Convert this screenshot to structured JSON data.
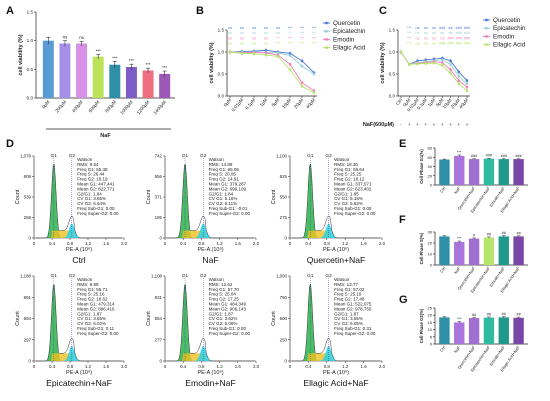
{
  "panel_labels": {
    "A": "A",
    "B": "B",
    "C": "C",
    "D": "D",
    "E": "E",
    "F": "F",
    "G": "G"
  },
  "colors": {
    "A_bars": [
      "#5b9bd5",
      "#a58fe8",
      "#d88fe6",
      "#bde35a",
      "#2e8fa6",
      "#7c5cc8",
      "#ef6f82",
      "#9b58b6"
    ],
    "quercetin": "#4a78d4",
    "epicatechin": "#9ad0d8",
    "emodin": "#f080b8",
    "ellagic": "#b5e56a",
    "E_bars": [
      "#2e8fa6",
      "#a974dc",
      "#a06fd0",
      "#2ebba0",
      "#1e9a8c",
      "#7b47a6"
    ],
    "F_bars": [
      "#2e8fa6",
      "#a974dc",
      "#a06fd0",
      "#b5e56a",
      "#1e9a8c",
      "#7b47a6"
    ],
    "G_bars": [
      "#2e8fa6",
      "#a974dc",
      "#a06fd0",
      "#2ebba0",
      "#1e9a8c",
      "#7b47a6"
    ],
    "fc_g1": "#2bb24c",
    "fc_s": "#f0c020",
    "fc_g2": "#2ad0e6"
  },
  "chart_data": [
    {
      "id": "A",
      "type": "bar",
      "title": "",
      "categories": [
        "0μM",
        "200μM",
        "400μM",
        "600μM",
        "800μM",
        "1000μM",
        "1200μM",
        "1400μM"
      ],
      "values": [
        1.0,
        0.95,
        0.95,
        0.72,
        0.58,
        0.54,
        0.48,
        0.42
      ],
      "errors": [
        0.06,
        0.05,
        0.04,
        0.04,
        0.06,
        0.05,
        0.04,
        0.05
      ],
      "significance": [
        "",
        "ns",
        "ns",
        "***",
        "***",
        "***",
        "***",
        "***"
      ],
      "ylabel": "cell viability (%)",
      "ylim": [
        0,
        1.5
      ],
      "yticks": [
        "0.0",
        "0.5",
        "1.0",
        "1.5"
      ],
      "group_label": "NaF"
    },
    {
      "id": "B",
      "type": "line",
      "x": [
        "0μM",
        "0.01μM",
        "0.1μM",
        "1μM",
        "5μM",
        "10μM",
        "20μM",
        "40μM"
      ],
      "ylabel": "cell viability (%)",
      "ylim": [
        0,
        1.5
      ],
      "yticks": [
        "0.0",
        "0.5",
        "1.0",
        "1.5"
      ],
      "series": [
        {
          "name": "Quercetin",
          "values": [
            1.0,
            1.01,
            1.02,
            1.04,
            1.0,
            0.97,
            0.8,
            0.53
          ]
        },
        {
          "name": "Epicatechin",
          "values": [
            1.0,
            0.99,
            1.0,
            0.99,
            0.98,
            0.92,
            0.68,
            0.5
          ]
        },
        {
          "name": "Emodin",
          "values": [
            1.0,
            0.98,
            0.99,
            0.98,
            0.93,
            0.72,
            0.3,
            0.12
          ]
        },
        {
          "name": "Ellagic Acid",
          "values": [
            1.0,
            0.97,
            0.96,
            0.93,
            0.9,
            0.6,
            0.22,
            0.08
          ]
        }
      ],
      "sig_rows": [
        [
          "ns",
          "ns",
          "ns",
          "ns",
          "ns",
          "***",
          "***",
          "***"
        ],
        [
          "ns",
          "ns",
          "ns",
          "ns",
          "ns",
          "**",
          "***",
          "***"
        ],
        [
          "ns",
          "ns",
          "ns",
          "ns",
          "**",
          "***",
          "***",
          "***"
        ],
        [
          "ns",
          "ns",
          "ns",
          "ns",
          "***",
          "***",
          "***",
          "***"
        ]
      ]
    },
    {
      "id": "C",
      "type": "line",
      "x": [
        "Ctrl",
        "0μM",
        "0.01μM",
        "0.1μM",
        "1μM",
        "5μM",
        "10μM",
        "20μM",
        "40μM"
      ],
      "ylabel": "cell viability (%)",
      "ylim": [
        0,
        1.5
      ],
      "yticks": [
        "0.0",
        "0.5",
        "1.0",
        "1.5"
      ],
      "xlabel": "NaF(600μM)",
      "naf_row": [
        "-",
        "+",
        "+",
        "+",
        "+",
        "+",
        "+",
        "+",
        "+"
      ],
      "series": [
        {
          "name": "Quercetin",
          "values": [
            1.0,
            0.72,
            0.8,
            0.82,
            0.84,
            0.86,
            0.8,
            0.55,
            0.35
          ]
        },
        {
          "name": "Epicatechin",
          "values": [
            1.0,
            0.72,
            0.76,
            0.78,
            0.8,
            0.82,
            0.72,
            0.45,
            0.28
          ]
        },
        {
          "name": "Emodin",
          "values": [
            1.0,
            0.72,
            0.74,
            0.76,
            0.78,
            0.76,
            0.6,
            0.35,
            0.2
          ]
        },
        {
          "name": "Ellagic Acid",
          "values": [
            1.0,
            0.72,
            0.73,
            0.74,
            0.75,
            0.7,
            0.52,
            0.28,
            0.12
          ]
        }
      ],
      "sig_rows": [
        [
          "",
          "***",
          "ns",
          "ns",
          "ns",
          "###",
          "##",
          "###",
          "###"
        ],
        [
          "",
          "***",
          "ns",
          "ns",
          "ns",
          "ns",
          "ns",
          "###",
          "###"
        ],
        [
          "",
          "***",
          "ns",
          "ns",
          "ns",
          "ns",
          "###",
          "###",
          "###"
        ],
        [
          "",
          "***",
          "ns",
          "ns",
          "ns",
          "###",
          "###",
          "###",
          "###"
        ]
      ]
    },
    {
      "id": "E",
      "type": "bar",
      "categories": [
        "Ctrl",
        "NaF",
        "Quercetin+NaF",
        "Epicatechin+NaF",
        "Emodin+NaF",
        "Ellagic Acid+NaF"
      ],
      "values": [
        55,
        63,
        56,
        57,
        56,
        56
      ],
      "errors": [
        1,
        2,
        1,
        1,
        1,
        1
      ],
      "significance": [
        "",
        "***",
        "###",
        "###",
        "###",
        "###"
      ],
      "ylabel": "Cell Phase G1(%)",
      "ylim": [
        0,
        80
      ],
      "yticks": [
        "0",
        "20",
        "40",
        "60",
        "80"
      ]
    },
    {
      "id": "F",
      "type": "bar",
      "categories": [
        "Ctrl",
        "NaF",
        "Quercetin+NaF",
        "Epicatechin+NaF",
        "Emodin+NaF",
        "Ellagic Acid+NaF"
      ],
      "values": [
        26,
        21,
        24,
        25,
        26,
        26
      ],
      "errors": [
        0.6,
        0.8,
        0.6,
        0.5,
        0.6,
        0.5
      ],
      "significance": [
        "",
        "***",
        "#",
        "##",
        "##",
        "##"
      ],
      "ylabel": "Cell Phase S(%)",
      "ylim": [
        0,
        30
      ],
      "yticks": [
        "0",
        "10",
        "20",
        "30"
      ]
    },
    {
      "id": "G",
      "type": "bar",
      "categories": [
        "Ctrl",
        "NaF",
        "Quercetin+NaF",
        "Epicatechin+NaF",
        "Emodin+NaF",
        "Ellagic Acid+NaF"
      ],
      "values": [
        18.5,
        15,
        18,
        18.3,
        18.5,
        18.2
      ],
      "errors": [
        0.5,
        0.6,
        0.5,
        0.5,
        0.5,
        0.5
      ],
      "significance": [
        "",
        "***",
        "##",
        "##",
        "##",
        "##"
      ],
      "ylabel": "Cell Phase G2(%)",
      "ylim": [
        0,
        25
      ],
      "yticks": [
        "0",
        "5",
        "10",
        "15",
        "20",
        "25"
      ]
    }
  ],
  "flow": {
    "axis_x_label": "PE-A (10⁶)",
    "axis_y_label": "Count",
    "x_ticks": [
      "0",
      "0.4",
      "0.8",
      "1.2",
      "1.6",
      "2.0"
    ],
    "peak_labels": {
      "g1": "G1",
      "g2": "G2"
    },
    "panels": [
      {
        "name": "Ctrl",
        "ymax": "1,078",
        "yticks": [
          "1,078",
          "808",
          "539",
          "269",
          "0"
        ],
        "stats": [
          "Watson",
          "RMS: 9.54",
          "Freq G1: 55.38",
          "Freq S: 26.44",
          "Freq G2: 18.19",
          "Mean G1: 447,441",
          "Mean G2: 822,771",
          "G2/G1: 1.84",
          "CV G1: 3.65%",
          "CV G2: 6.64%",
          "Freq Sub-G1: 0.00",
          "Freq Super-G2: 0.00"
        ],
        "label": "Ctrl"
      },
      {
        "name": "NaF",
        "ymax": "742",
        "yticks": [
          "742",
          "556",
          "371",
          "185",
          "0"
        ],
        "stats": [
          "Watson",
          "RMS: 14.89",
          "Freq G1: 65.05",
          "Freq S: 20.05",
          "Freq G2: 14.91",
          "Mean G1: 379,287",
          "Mean G2: 699,109",
          "G2/G1: 1.84",
          "CV G1: 5.16%",
          "CV G2: 6.11%",
          "Freq Sub-G1: -0.01",
          "Freq Super-G2: 0.00"
        ],
        "label": "NaF"
      },
      {
        "name": "Quercetin+NaF",
        "ymax": "1,100",
        "yticks": [
          "1,100",
          "825",
          "550",
          "275",
          "0"
        ],
        "stats": [
          "Watson",
          "RMS: 18.30",
          "Freq G1: 56.64",
          "Freq S: 25.25",
          "Freq G2: 18.12",
          "Mean G1: 337,571",
          "Mean G2: 623,402",
          "G2/G1: 1.85",
          "CV G1: 5.18%",
          "CV G2: 5.62%",
          "Freq Sub-G1: 0.00",
          "Freq Super-G2: 0.00"
        ],
        "label": "Quercetin+NaF"
      },
      {
        "name": "Epicatechin+NaF",
        "ymax": "1,188",
        "yticks": [
          "1,188",
          "891",
          "594",
          "297",
          "0"
        ],
        "stats": [
          "Watson",
          "RMS: 9.99",
          "Freq G1: 55.71",
          "Freq S: 25.16",
          "Freq G2: 18.62",
          "Mean G1: 479,314",
          "Mean G2: 896,416",
          "G2/G1: 1.87",
          "CV G1: 3.65%",
          "CV G2: 6.02%",
          "Freq Sub-G1: 0.11",
          "Freq Super-G2: 0.00"
        ],
        "label": "Epicatechin+NaF"
      },
      {
        "name": "Emodin+NaF",
        "ymax": "1,108",
        "yticks": [
          "1,108",
          "831",
          "554",
          "277",
          "0"
        ],
        "stats": [
          "Watson",
          "RMS: 12.62",
          "Freq G1: 57.70",
          "Freq S: 25.04",
          "Freq G2: 17.25",
          "Mean G1: 484,349",
          "Mean G2: 906,143",
          "G2/G1: 1.87",
          "CV G1: 3.62%",
          "CV G2: 5.06%",
          "Freq Sub-G1: 0.00",
          "Freq Super-G2: 0.00"
        ],
        "label": "Emodin+NaF"
      },
      {
        "name": "Ellagic Acid+NaF",
        "ymax": "1,000",
        "yticks": [
          "1,000",
          "750",
          "500",
          "250",
          "0"
        ],
        "stats": [
          "Watson",
          "RMS: 13.77",
          "Freq G1: 57.02",
          "Freq S: 25.19",
          "Freq G2: 17.48",
          "Mean G1: 522,075",
          "Mean G2: 978,750",
          "G2/G1: 1.87",
          "CV G1: 3.55%",
          "CV G2: 6.05%",
          "Freq Sub-G1: 0.31",
          "Freq Super-G2: 0.00"
        ],
        "label": "Ellagic Acid+NaF"
      }
    ]
  }
}
